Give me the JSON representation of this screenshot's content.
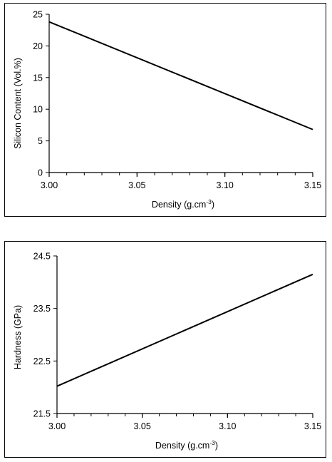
{
  "chart_data": [
    {
      "type": "line",
      "title": "",
      "xlabel": "Density (g.cm",
      "xlabel_sup": "-3",
      "xlabel_end": ")",
      "ylabel": "Silicon Content (Vol.%)",
      "xlim": [
        3.0,
        3.15
      ],
      "ylim": [
        0,
        25
      ],
      "xticks": [
        3.0,
        3.05,
        3.1,
        3.15
      ],
      "xtick_labels": [
        "3.00",
        "3.05",
        "3.10",
        "3.15"
      ],
      "yticks": [
        0,
        5,
        10,
        15,
        20,
        25
      ],
      "ytick_labels": [
        "0",
        "5",
        "10",
        "15",
        "20",
        "25"
      ],
      "x_minor_step": 0.01,
      "grid": false,
      "series": [
        {
          "x": [
            3.0,
            3.15
          ],
          "y": [
            23.8,
            6.8
          ],
          "color": "#000000"
        }
      ]
    },
    {
      "type": "line",
      "title": "",
      "xlabel": "Density (g.cm",
      "xlabel_sup": "-3",
      "xlabel_end": ")",
      "ylabel": "Hardness (GPa)",
      "xlim": [
        3.0,
        3.15
      ],
      "ylim": [
        21.5,
        24.5
      ],
      "xticks": [
        3.0,
        3.05,
        3.1,
        3.15
      ],
      "xtick_labels": [
        "3.00",
        "3.05",
        "3.10",
        "3.15"
      ],
      "yticks": [
        21.5,
        22.5,
        23.5,
        24.5
      ],
      "ytick_labels": [
        "21.5",
        "22.5",
        "23.5",
        "24.5"
      ],
      "x_minor_step": 0.01,
      "grid": false,
      "series": [
        {
          "x": [
            3.0,
            3.15
          ],
          "y": [
            22.02,
            24.15
          ],
          "color": "#000000"
        }
      ]
    }
  ]
}
